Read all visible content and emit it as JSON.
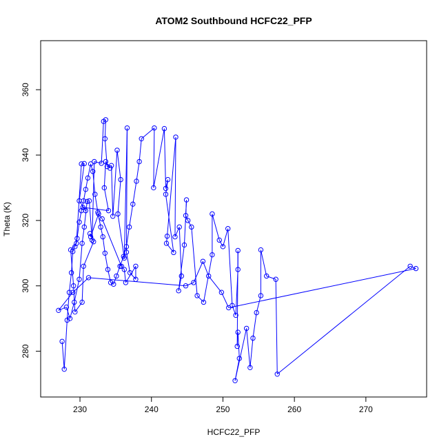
{
  "chart_data": {
    "type": "line",
    "title": "ATOM2 Southbound HCFC22_PFP",
    "xlabel": "HCFC22_PFP",
    "ylabel": "Theta (K)",
    "xlim": [
      224.5,
      278.5
    ],
    "ylim": [
      266,
      375
    ],
    "xticks": [
      230,
      240,
      250,
      260,
      270
    ],
    "yticks": [
      280,
      300,
      320,
      340,
      360
    ],
    "grid": false,
    "marker": "open-circle",
    "colors": {
      "series": "#0000ff",
      "axis": "#000000",
      "background": "#ffffff"
    },
    "series": [
      {
        "points": [
          [
            227.5,
            283.0
          ],
          [
            227.8,
            274.5
          ],
          [
            228.2,
            289.5
          ],
          [
            228.5,
            298.0
          ],
          [
            228.8,
            304.0
          ],
          [
            229.0,
            310.5
          ],
          [
            229.3,
            312.0
          ],
          [
            229.6,
            314.5
          ],
          [
            229.9,
            319.5
          ],
          [
            230.2,
            323.0
          ],
          [
            230.5,
            326.0
          ],
          [
            230.8,
            329.5
          ],
          [
            231.1,
            333.0
          ],
          [
            231.5,
            337.3
          ],
          [
            231.8,
            335.0
          ],
          [
            232.1,
            328.0
          ],
          [
            232.5,
            322.5
          ],
          [
            232.9,
            318.0
          ],
          [
            233.2,
            315.0
          ],
          [
            233.5,
            310.0
          ],
          [
            233.9,
            305.0
          ],
          [
            234.3,
            301.0
          ],
          [
            234.7,
            300.5
          ],
          [
            235.1,
            303.0
          ],
          [
            235.6,
            306.0
          ],
          [
            236.1,
            309.0
          ],
          [
            236.5,
            312.0
          ],
          [
            236.9,
            318.0
          ],
          [
            237.4,
            325.0
          ],
          [
            237.9,
            332.0
          ],
          [
            238.3,
            338.0
          ],
          [
            238.6,
            345.0
          ],
          [
            240.4,
            348.3
          ],
          [
            240.3,
            330.0
          ],
          [
            241.8,
            348.1
          ],
          [
            242.0,
            329.8
          ],
          [
            242.3,
            332.5
          ],
          [
            242.0,
            328.0
          ],
          [
            243.1,
            310.2
          ],
          [
            242.1,
            313.0
          ],
          [
            242.2,
            315.2
          ],
          [
            243.4,
            345.5
          ],
          [
            243.3,
            315.0
          ],
          [
            243.9,
            318.0
          ],
          [
            244.2,
            303.0
          ],
          [
            243.8,
            298.5
          ],
          [
            244.6,
            312.5
          ],
          [
            244.9,
            326.3
          ],
          [
            244.8,
            321.5
          ],
          [
            245.1,
            320.0
          ],
          [
            245.6,
            318.0
          ],
          [
            246.4,
            297.0
          ],
          [
            247.3,
            295.0
          ],
          [
            248.5,
            309.5
          ],
          [
            248.5,
            322.0
          ],
          [
            249.5,
            314.0
          ],
          [
            250.0,
            312.0
          ],
          [
            250.7,
            317.5
          ],
          [
            251.3,
            294.0
          ],
          [
            251.8,
            291.0
          ],
          [
            252.1,
            305.0
          ],
          [
            252.1,
            310.8
          ],
          [
            252.0,
            281.5
          ],
          [
            252.1,
            285.8
          ],
          [
            252.3,
            277.8
          ],
          [
            251.7,
            271.0
          ],
          [
            253.3,
            287.0
          ],
          [
            253.8,
            275.0
          ],
          [
            254.2,
            284.0
          ],
          [
            254.7,
            291.8
          ],
          [
            255.3,
            297.0
          ],
          [
            255.3,
            311.0
          ],
          [
            256.1,
            303.0
          ],
          [
            257.4,
            302.0
          ],
          [
            257.6,
            273.0
          ],
          [
            276.2,
            306.0
          ],
          [
            277.0,
            305.3
          ],
          [
            250.8,
            293.3
          ],
          [
            249.8,
            298.0
          ],
          [
            248.0,
            303.0
          ],
          [
            247.2,
            307.5
          ],
          [
            245.9,
            301.0
          ],
          [
            244.8,
            300.0
          ],
          [
            231.2,
            302.5
          ],
          [
            229.0,
            298.0
          ],
          [
            227.0,
            292.5
          ],
          [
            228.1,
            293.5
          ],
          [
            228.6,
            290.0
          ],
          [
            229.2,
            295.0
          ],
          [
            229.9,
            302.0
          ],
          [
            230.3,
            313.0
          ],
          [
            230.6,
            318.0
          ],
          [
            231.0,
            325.8
          ],
          [
            231.3,
            326.0
          ],
          [
            231.7,
            314.0
          ],
          [
            232.0,
            338.0
          ],
          [
            233.0,
            337.5
          ],
          [
            233.3,
            350.3
          ],
          [
            233.6,
            350.8
          ],
          [
            233.5,
            345.0
          ],
          [
            233.8,
            336.5
          ],
          [
            234.4,
            336.8
          ],
          [
            234.6,
            321.3
          ],
          [
            235.2,
            341.5
          ],
          [
            235.7,
            332.5
          ],
          [
            235.3,
            322.0
          ],
          [
            236.2,
            308.5
          ],
          [
            236.6,
            348.3
          ],
          [
            236.5,
            310.3
          ],
          [
            237.0,
            304.0
          ],
          [
            237.8,
            302.0
          ],
          [
            237.8,
            306.0
          ],
          [
            236.4,
            301.0
          ],
          [
            236.2,
            305.0
          ],
          [
            235.8,
            306.0
          ],
          [
            233.1,
            320.5
          ],
          [
            232.6,
            322.0
          ],
          [
            231.5,
            315.0
          ],
          [
            231.4,
            316.0
          ],
          [
            231.9,
            313.5
          ],
          [
            230.5,
            306.0
          ],
          [
            230.3,
            295.0
          ],
          [
            229.3,
            292.0
          ],
          [
            229.1,
            300.0
          ],
          [
            228.7,
            311.0
          ],
          [
            229.5,
            313.0
          ],
          [
            230.2,
            337.3
          ],
          [
            230.6,
            337.4
          ],
          [
            229.9,
            326.0
          ],
          [
            230.8,
            323.0
          ],
          [
            230.4,
            324.0
          ],
          [
            234.0,
            323.0
          ],
          [
            233.4,
            330.0
          ],
          [
            233.6,
            338.0
          ],
          [
            234.2,
            336.0
          ]
        ]
      }
    ]
  }
}
